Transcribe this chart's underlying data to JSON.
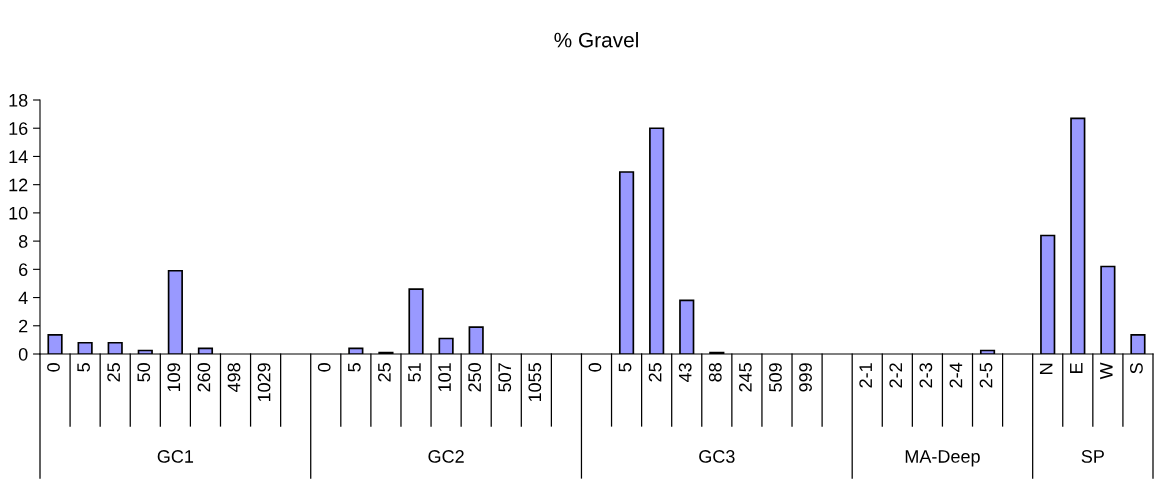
{
  "chart_data": {
    "type": "bar",
    "title": "% Gravel",
    "categories": [
      "0",
      "5",
      "25",
      "50",
      "109",
      "260",
      "498",
      "1029",
      null,
      "0",
      "5",
      "25",
      "51",
      "101",
      "250",
      "507",
      "1055",
      null,
      "0",
      "5",
      "25",
      "43",
      "88",
      "245",
      "509",
      "999",
      null,
      "2-1",
      "2-2",
      "2-3",
      "2-4",
      "2-5",
      null,
      "N",
      "E",
      "W",
      "S"
    ],
    "values": [
      1.35,
      0.8,
      0.8,
      0.25,
      5.9,
      0.4,
      0,
      0,
      null,
      0,
      0.4,
      0.1,
      4.6,
      1.1,
      1.9,
      0,
      0,
      null,
      0,
      12.9,
      16.0,
      3.8,
      0.1,
      0,
      0,
      0,
      null,
      0,
      0,
      0,
      0,
      0.25,
      null,
      8.4,
      16.7,
      6.2,
      1.35
    ],
    "color": "#9999ff",
    "annotations": [
      "GC1",
      "GC2",
      "GC3",
      "MA-Deep",
      "SP"
    ],
    "ylim": [
      0,
      18
    ],
    "yticks": [
      0,
      2,
      4,
      6,
      8,
      10,
      12,
      14,
      16,
      18
    ],
    "grid": false
  }
}
